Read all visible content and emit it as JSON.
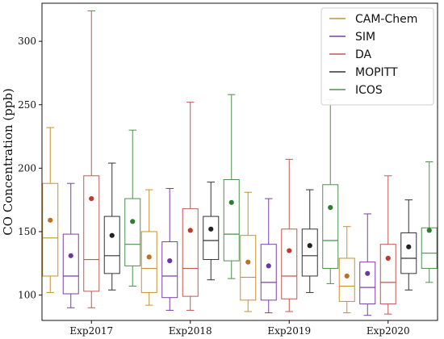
{
  "chart_data": {
    "type": "box",
    "ylabel": "CO Concentration (ppb)",
    "xlabel": "",
    "ylim": [
      80,
      330
    ],
    "yticks": [
      100,
      150,
      200,
      250,
      300
    ],
    "grid": false,
    "legend_position": "top-right",
    "categories": [
      "Exp2017",
      "Exp2018",
      "Exp2019",
      "Exp2020"
    ],
    "series": [
      {
        "name": "CAM-Chem",
        "color": "#c8902e",
        "mean_color": "#c2701e",
        "boxes": [
          {
            "whisker_low": 102,
            "q1": 115,
            "median": 145,
            "q3": 188,
            "whisker_high": 232,
            "mean": 159
          },
          {
            "whisker_low": 92,
            "q1": 102,
            "median": 121,
            "q3": 150,
            "whisker_high": 183,
            "mean": 130
          },
          {
            "whisker_low": 87,
            "q1": 96,
            "median": 114,
            "q3": 147,
            "whisker_high": 181,
            "mean": 126
          },
          {
            "whisker_low": 86,
            "q1": 95,
            "median": 107,
            "q3": 129,
            "whisker_high": 154,
            "mean": 115
          }
        ]
      },
      {
        "name": "SIM",
        "color": "#7b3fa8",
        "mean_color": "#6a38a5",
        "boxes": [
          {
            "whisker_low": 90,
            "q1": 101,
            "median": 115,
            "q3": 148,
            "whisker_high": 188,
            "mean": 131
          },
          {
            "whisker_low": 88,
            "q1": 98,
            "median": 115,
            "q3": 142,
            "whisker_high": 184,
            "mean": 127
          },
          {
            "whisker_low": 86,
            "q1": 96,
            "median": 110,
            "q3": 140,
            "whisker_high": 176,
            "mean": 123
          },
          {
            "whisker_low": 84,
            "q1": 93,
            "median": 106,
            "q3": 126,
            "whisker_high": 164,
            "mean": 117
          }
        ]
      },
      {
        "name": "DA",
        "color": "#c0594f",
        "mean_color": "#c0392b",
        "boxes": [
          {
            "whisker_low": 90,
            "q1": 103,
            "median": 128,
            "q3": 194,
            "whisker_high": 324,
            "mean": 176
          },
          {
            "whisker_low": 88,
            "q1": 99,
            "median": 121,
            "q3": 168,
            "whisker_high": 252,
            "mean": 151
          },
          {
            "whisker_low": 87,
            "q1": 97,
            "median": 115,
            "q3": 152,
            "whisker_high": 207,
            "mean": 135
          },
          {
            "whisker_low": 85,
            "q1": 93,
            "median": 110,
            "q3": 140,
            "whisker_high": 194,
            "mean": 129
          }
        ]
      },
      {
        "name": "MOPITT",
        "color": "#333333",
        "mean_color": "#222222",
        "boxes": [
          {
            "whisker_low": 104,
            "q1": 117,
            "median": 131,
            "q3": 162,
            "whisker_high": 204,
            "mean": 147
          },
          {
            "whisker_low": 112,
            "q1": 128,
            "median": 143,
            "q3": 162,
            "whisker_high": 189,
            "mean": 152
          },
          {
            "whisker_low": 102,
            "q1": 115,
            "median": 131,
            "q3": 152,
            "whisker_high": 183,
            "mean": 139
          },
          {
            "whisker_low": 104,
            "q1": 117,
            "median": 129,
            "q3": 149,
            "whisker_high": 175,
            "mean": 138
          }
        ]
      },
      {
        "name": "ICOS",
        "color": "#4e8f4e",
        "mean_color": "#2e7d32",
        "boxes": [
          {
            "whisker_low": 107,
            "q1": 123,
            "median": 140,
            "q3": 176,
            "whisker_high": 230,
            "mean": 158
          },
          {
            "whisker_low": 113,
            "q1": 127,
            "median": 148,
            "q3": 191,
            "whisker_high": 258,
            "mean": 173
          },
          {
            "whisker_low": 109,
            "q1": 121,
            "median": 143,
            "q3": 187,
            "whisker_high": 254,
            "mean": 169
          },
          {
            "whisker_low": 110,
            "q1": 121,
            "median": 133,
            "q3": 153,
            "whisker_high": 205,
            "mean": 151
          }
        ]
      }
    ]
  }
}
